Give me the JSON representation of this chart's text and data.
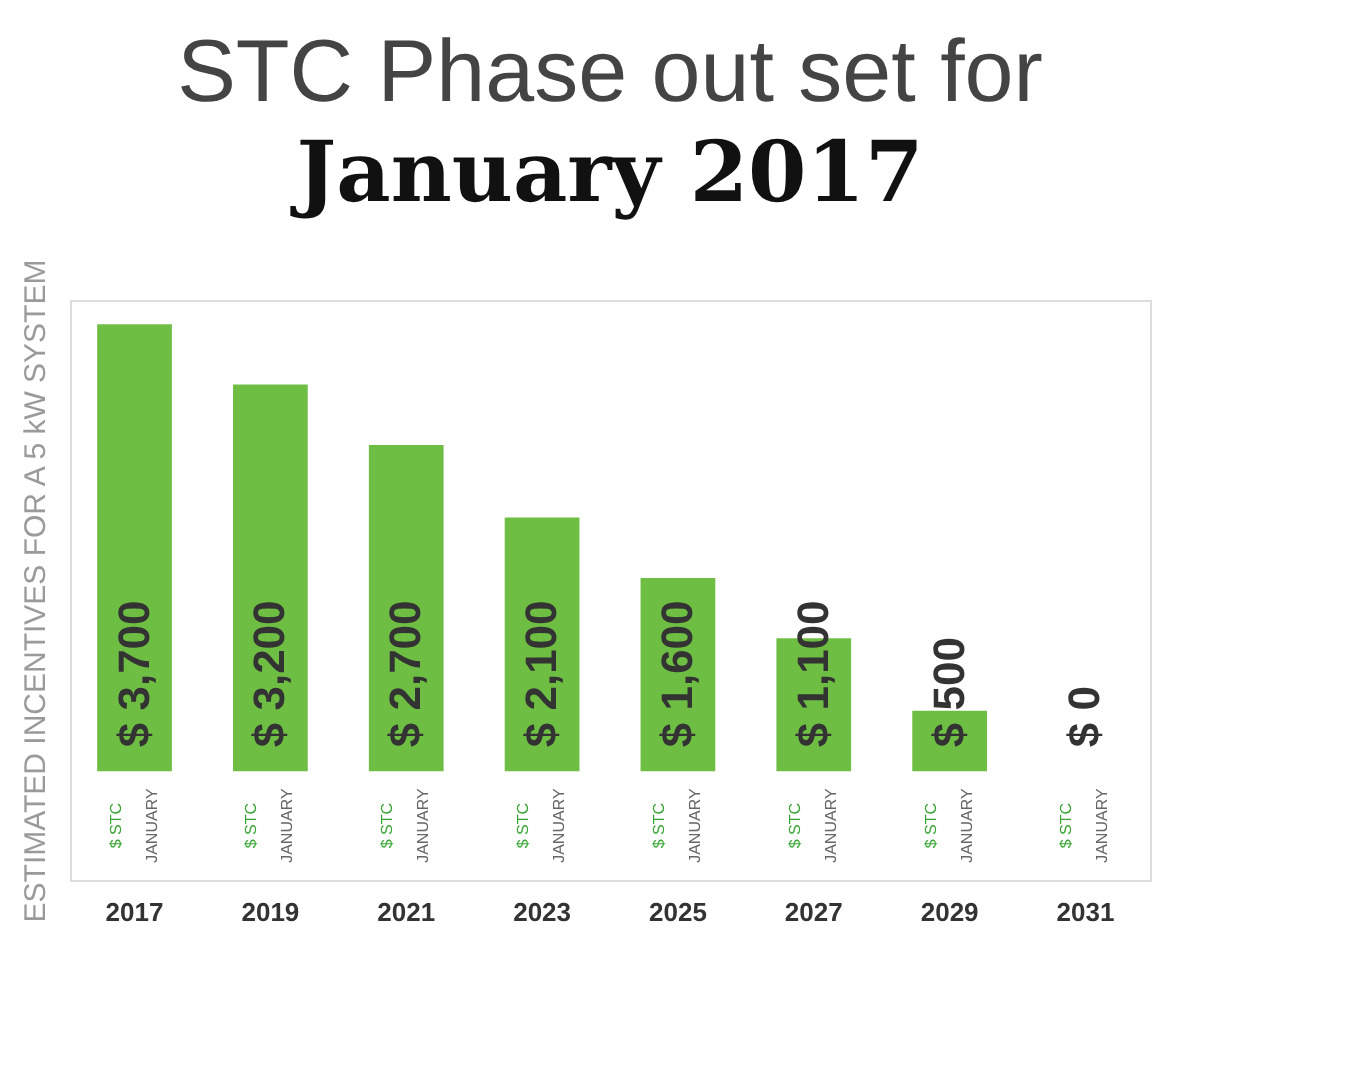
{
  "chart_data": {
    "type": "bar",
    "title": "STC Phase out set for",
    "subtitle": "January 2017",
    "ylabel": "ESTIMATED INCENTIVES FOR A 5 kW SYSTEM",
    "categories": [
      "2017",
      "2019",
      "2021",
      "2023",
      "2025",
      "2027",
      "2029",
      "2031"
    ],
    "values": [
      3700,
      3200,
      2700,
      2100,
      1600,
      1100,
      500,
      0
    ],
    "value_labels": [
      "$ 3,700",
      "$ 3,200",
      "$ 2,700",
      "$ 2,100",
      "$ 1,600",
      "$ 1,100",
      "$ 500",
      "$ 0"
    ],
    "color": "#6fbe44",
    "ylim": [
      -900,
      3900
    ],
    "annotations": [
      "$ STC",
      "JANUARY"
    ],
    "grid": false
  }
}
